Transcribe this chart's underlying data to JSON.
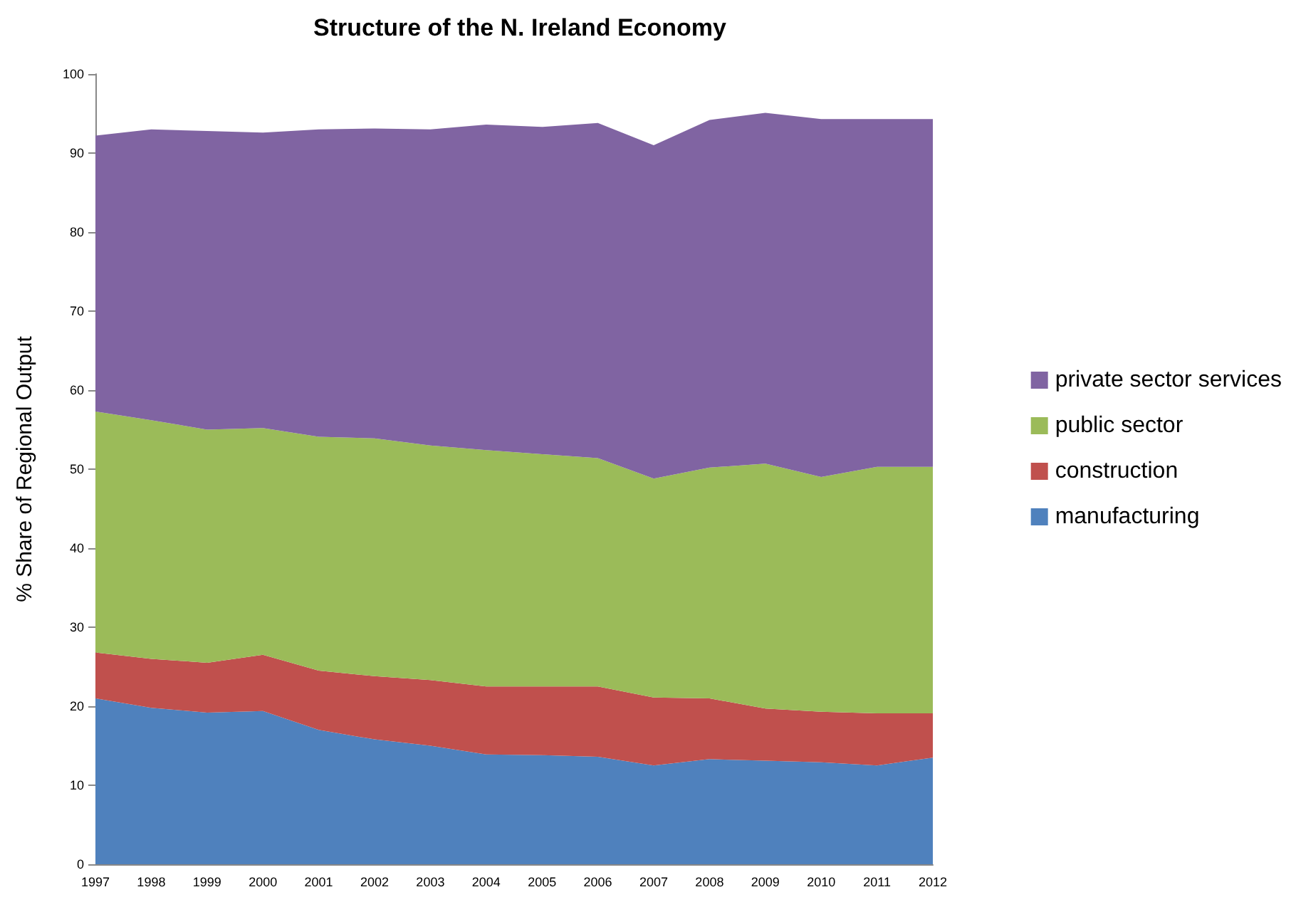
{
  "chart_data": {
    "type": "area",
    "stacked": true,
    "title": "Structure of the N. Ireland Economy",
    "ylabel": "% Share of Regional Output",
    "categories": [
      "1997",
      "1998",
      "1999",
      "2000",
      "2001",
      "2002",
      "2003",
      "2004",
      "2005",
      "2006",
      "2007",
      "2008",
      "2009",
      "2010",
      "2011",
      "2012"
    ],
    "series": [
      {
        "name": "manufacturing",
        "color": "#4f81bd",
        "values": [
          21,
          19.8,
          19.2,
          19.4,
          17,
          15.8,
          15,
          13.9,
          13.8,
          13.6,
          12.5,
          13.3,
          13.1,
          12.9,
          12.5,
          13.5
        ]
      },
      {
        "name": "construction",
        "color": "#c0504d",
        "values": [
          5.8,
          6.2,
          6.3,
          7.1,
          7.5,
          8.0,
          8.3,
          8.6,
          8.7,
          8.9,
          8.6,
          7.7,
          6.6,
          6.4,
          6.6,
          5.6
        ]
      },
      {
        "name": "public sector",
        "color": "#9bbb59",
        "values": [
          30.5,
          30.2,
          29.5,
          28.7,
          29.6,
          30.1,
          29.7,
          29.9,
          29.4,
          28.9,
          27.7,
          29.2,
          31.0,
          29.7,
          31.2,
          31.2
        ]
      },
      {
        "name": "private sector services",
        "color": "#8064a2",
        "values": [
          34.9,
          36.8,
          37.8,
          37.4,
          38.9,
          39.2,
          40.0,
          41.2,
          41.4,
          42.4,
          42.2,
          44.0,
          44.4,
          45.3,
          44.0,
          44.0
        ]
      }
    ],
    "ylim": [
      0,
      100
    ],
    "yticks": [
      0,
      10,
      20,
      30,
      40,
      50,
      60,
      70,
      80,
      90,
      100
    ],
    "grid": false,
    "legend": "right"
  }
}
